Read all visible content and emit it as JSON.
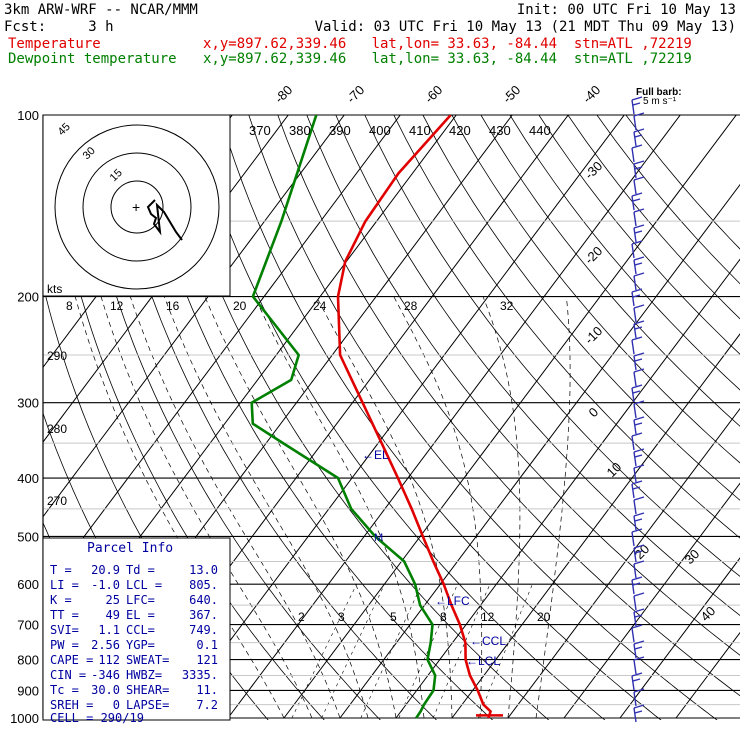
{
  "header": {
    "model": "3km ARW-WRF -- NCAR/MMM",
    "init": "Init: 00 UTC Fri 10 May 13",
    "fcst": "Fcst:     3 h",
    "valid": "Valid: 03 UTC Fri 10 May 13 (21 MDT Thu 09 May 13)",
    "temp_label": "Temperature",
    "temp_loc": "x,y=897.62,339.46   lat,lon= 33.63, -84.44  stn=ATL ,72219",
    "dew_label": "Dewpoint temperature",
    "dew_loc": "x,y=897.62,339.46   lat,lon= 33.63, -84.44  stn=ATL ,72219",
    "wind_key": "Full barb:",
    "wind_key2": "5 m s⁻¹"
  },
  "chart_data": {
    "type": "line",
    "pressure_levels": [
      "100",
      "200",
      "300",
      "400",
      "500",
      "600",
      "700",
      "800",
      "900",
      "1000"
    ],
    "theta_labels": [
      "370",
      "380",
      "390",
      "400",
      "410",
      "420",
      "430",
      "440"
    ],
    "theta_side_labels": [
      "290",
      "280",
      "270"
    ],
    "isotherm_labels_top": [
      "-80",
      "-70",
      "-60",
      "-50",
      "-40"
    ],
    "isotherm_labels_right": [
      "-30",
      "-20",
      "-10",
      "0",
      "10",
      "20",
      "30",
      "40"
    ],
    "mixing_ratio_labels": [
      "2",
      "3",
      "5",
      "8",
      "12",
      "20"
    ],
    "hodograph": {
      "speed_label": "kts",
      "ring_labels": [
        "15",
        "30",
        "45"
      ],
      "bottom_labels": [
        "8",
        "12",
        "16",
        "20",
        "24",
        "28",
        "32"
      ]
    },
    "annotations": {
      "el": "EL",
      "lfc": "LFC",
      "ccl": "CCL",
      "lcl": "LCL"
    },
    "series": [
      {
        "name": "Temperature",
        "color": "#e00000",
        "points": [
          [
            1000,
            26.5
          ],
          [
            975,
            26.0
          ],
          [
            950,
            23.8
          ],
          [
            900,
            20.9
          ],
          [
            850,
            17.5
          ],
          [
            800,
            14.6
          ],
          [
            750,
            12.3
          ],
          [
            700,
            8.9
          ],
          [
            650,
            4.8
          ],
          [
            600,
            0.6
          ],
          [
            550,
            -4.3
          ],
          [
            500,
            -9.5
          ],
          [
            450,
            -15.2
          ],
          [
            400,
            -21.8
          ],
          [
            350,
            -29.4
          ],
          [
            300,
            -38.2
          ],
          [
            250,
            -48.6
          ],
          [
            200,
            -56.8
          ],
          [
            175,
            -60.2
          ],
          [
            150,
            -62.0
          ],
          [
            125,
            -62.5
          ],
          [
            100,
            -61.0
          ]
        ]
      },
      {
        "name": "Dewpoint temperature",
        "color": "#008000",
        "points": [
          [
            1000,
            13.6
          ],
          [
            975,
            13.5
          ],
          [
            950,
            13.2
          ],
          [
            900,
            13.0
          ],
          [
            850,
            11.3
          ],
          [
            800,
            7.8
          ],
          [
            750,
            6.1
          ],
          [
            700,
            4.0
          ],
          [
            650,
            -0.8
          ],
          [
            600,
            -4.5
          ],
          [
            550,
            -9.5
          ],
          [
            500,
            -18.0
          ],
          [
            450,
            -26.0
          ],
          [
            400,
            -32.5
          ],
          [
            350,
            -47.0
          ],
          [
            325,
            -55.0
          ],
          [
            300,
            -58.0
          ],
          [
            275,
            -54.0
          ],
          [
            250,
            -56.0
          ],
          [
            200,
            -72.0
          ],
          [
            150,
            -77.0
          ],
          [
            100,
            -85.0
          ]
        ]
      }
    ]
  },
  "parcel_info": {
    "title": "Parcel Info",
    "rows": [
      [
        "T  =",
        "20.9",
        "Td =",
        "13.0"
      ],
      [
        "LI =",
        "-1.0",
        "LCL =",
        "805."
      ],
      [
        "K  =",
        "25",
        "LFC=",
        "640."
      ],
      [
        "TT =",
        "49",
        "EL =",
        "367."
      ],
      [
        "SVI=",
        "1.1",
        "CCL=",
        "749."
      ],
      [
        "PW =",
        "2.56",
        "YGP=",
        "0.1"
      ],
      [
        "CAPE =",
        "112",
        "SWEAT=",
        "121"
      ],
      [
        "CIN =",
        "-346",
        "HWBZ=",
        "3335."
      ],
      [
        "Tc =",
        "30.0",
        "SHEAR=",
        "11."
      ],
      [
        "SREH =",
        "0",
        "LAPSE=",
        "7.2"
      ]
    ],
    "cell": "CELL = 290/19"
  }
}
